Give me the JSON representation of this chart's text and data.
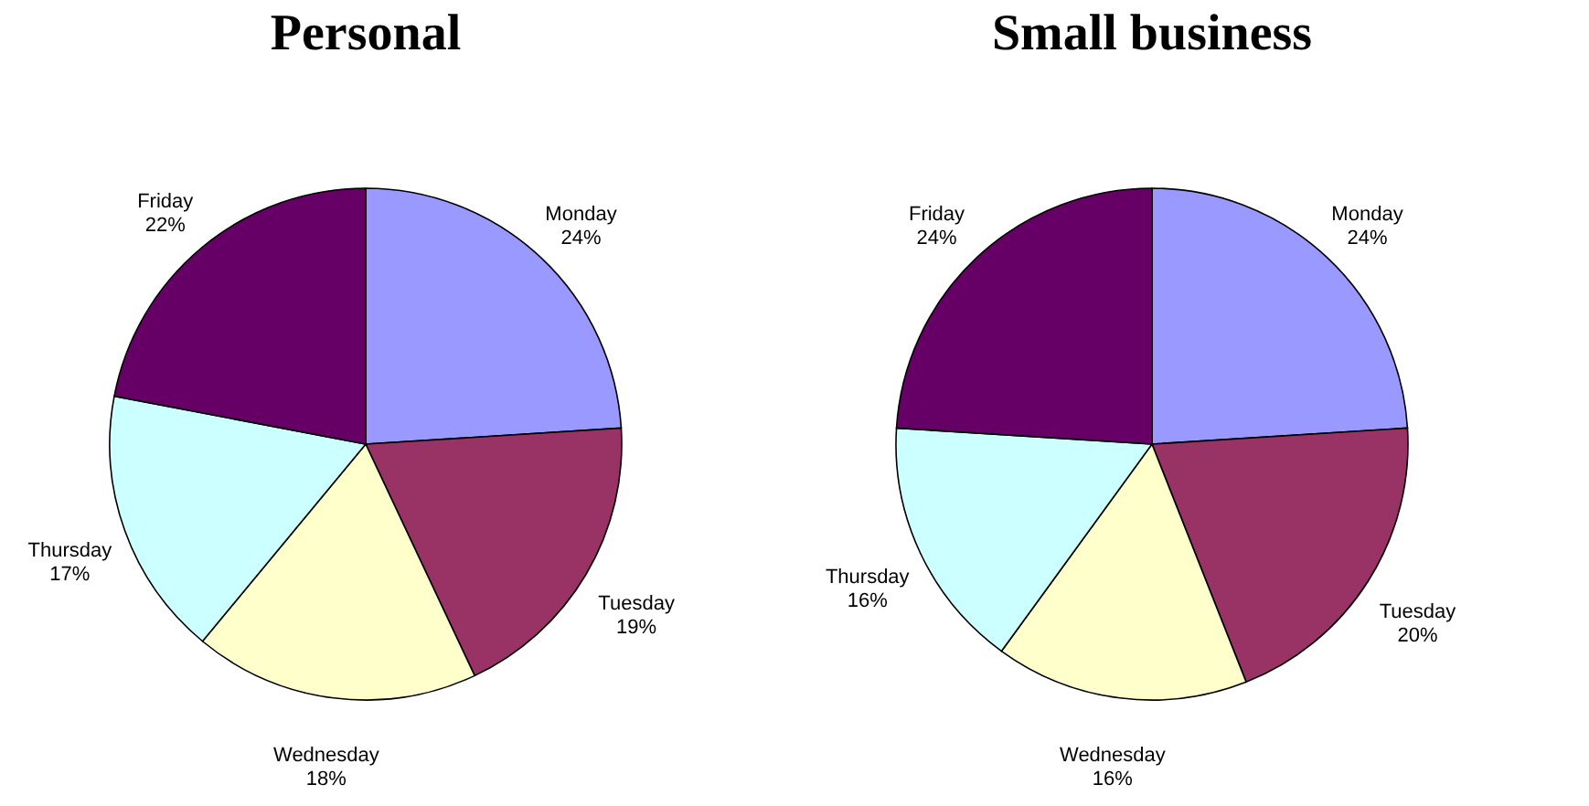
{
  "chart_data": [
    {
      "type": "pie",
      "title": "Personal",
      "categories": [
        "Monday",
        "Tuesday",
        "Wednesday",
        "Thursday",
        "Friday"
      ],
      "values": [
        24,
        19,
        18,
        17,
        22
      ],
      "value_labels": [
        "24%",
        "19%",
        "18%",
        "17%",
        "22%"
      ],
      "colors": [
        "#9999ff",
        "#993366",
        "#ffffcc",
        "#ccffff",
        "#660066"
      ],
      "legend": false
    },
    {
      "type": "pie",
      "title": "Small business",
      "categories": [
        "Monday",
        "Tuesday",
        "Wednesday",
        "Thursday",
        "Friday"
      ],
      "values": [
        24,
        20,
        16,
        16,
        24
      ],
      "value_labels": [
        "24%",
        "20%",
        "16%",
        "16%",
        "24%"
      ],
      "colors": [
        "#9999ff",
        "#993366",
        "#ffffcc",
        "#ccffff",
        "#660066"
      ],
      "legend": false
    }
  ]
}
